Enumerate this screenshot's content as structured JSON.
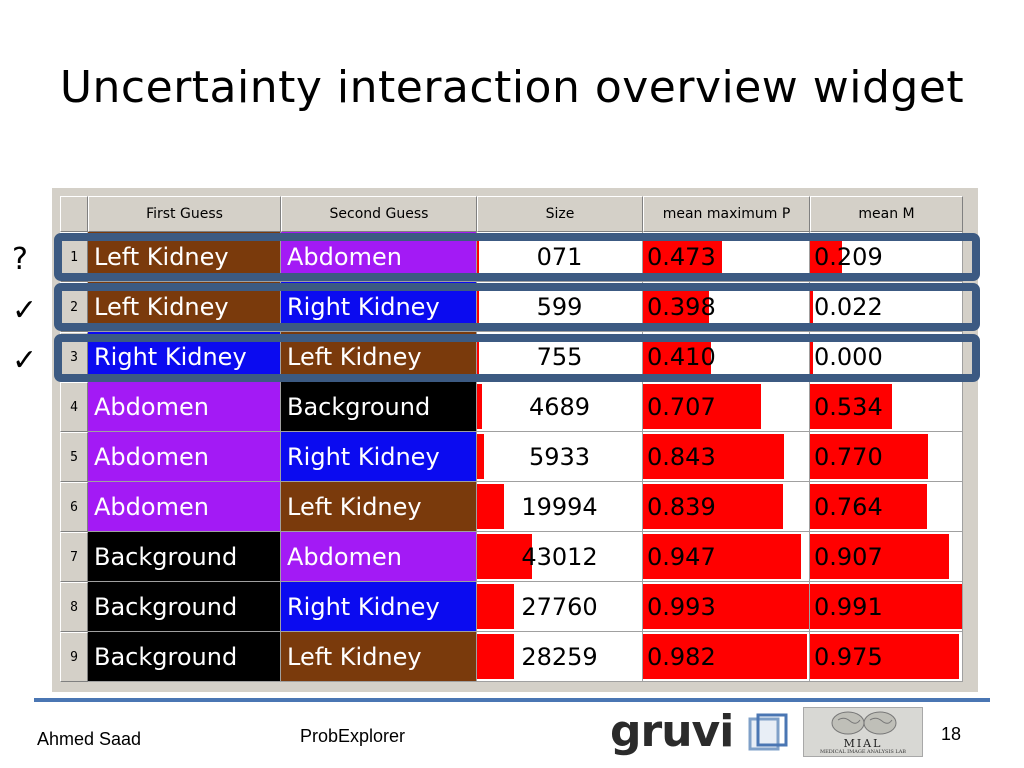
{
  "slide": {
    "title": "Uncertainty interaction overview widget",
    "markers": [
      "?",
      "✓",
      "✓"
    ],
    "footer": {
      "author": "Ahmed Saad",
      "tool": "ProbExplorer",
      "page": "18"
    },
    "logos": {
      "gruvi": "gruvi",
      "mial": "MIAL",
      "mial_sub": "MEDICAL IMAGE ANALYSIS LAB"
    }
  },
  "table": {
    "columns": [
      "First Guess",
      "Second Guess",
      "Size",
      "mean maximum P",
      "mean M"
    ],
    "rows": [
      {
        "num": "1",
        "first": "Left Kidney",
        "second": "Abdomen",
        "size": "071",
        "size_frac": 0.0,
        "p": "0.473",
        "m": "0.209"
      },
      {
        "num": "2",
        "first": "Left Kidney",
        "second": "Right Kidney",
        "size": "599",
        "size_frac": 0.0,
        "p": "0.398",
        "m": "0.022"
      },
      {
        "num": "3",
        "first": "Right Kidney",
        "second": "Left Kidney",
        "size": "755",
        "size_frac": 0.0,
        "p": "0.410",
        "m": "0.000"
      },
      {
        "num": "4",
        "first": "Abdomen",
        "second": "Background",
        "size": "4689",
        "size_frac": 0.03,
        "p": "0.707",
        "m": "0.534"
      },
      {
        "num": "5",
        "first": "Abdomen",
        "second": "Right Kidney",
        "size": "5933",
        "size_frac": 0.04,
        "p": "0.843",
        "m": "0.770"
      },
      {
        "num": "6",
        "first": "Abdomen",
        "second": "Left Kidney",
        "size": "19994",
        "size_frac": 0.16,
        "p": "0.839",
        "m": "0.764"
      },
      {
        "num": "7",
        "first": "Background",
        "second": "Abdomen",
        "size": "43012",
        "size_frac": 0.33,
        "p": "0.947",
        "m": "0.907"
      },
      {
        "num": "8",
        "first": "Background",
        "second": "Right Kidney",
        "size": "27760",
        "size_frac": 0.22,
        "p": "0.993",
        "m": "0.991"
      },
      {
        "num": "9",
        "first": "Background",
        "second": "Left Kidney",
        "size": "28259",
        "size_frac": 0.22,
        "p": "0.982",
        "m": "0.975"
      }
    ]
  },
  "colors": {
    "Left Kidney": "#7a3a0c",
    "Right Kidney": "#0b0bf0",
    "Abdomen": "#a31af5",
    "Background": "#000000",
    "bar": "#ff0000",
    "highlight": "#3c5a82"
  }
}
